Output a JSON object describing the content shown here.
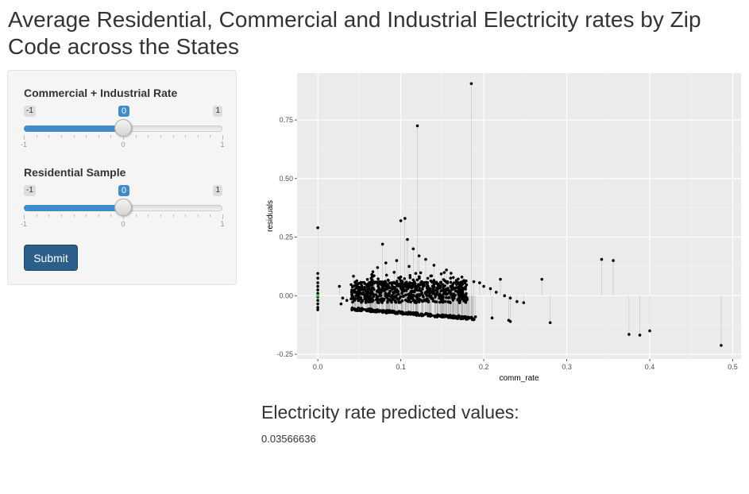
{
  "page": {
    "title": "Average Residential, Commercial and Industrial Electricity rates by Zip Code across the States"
  },
  "sidebar": {
    "slider1": {
      "label": "Commercial + Industrial Rate",
      "min_label": "-1",
      "max_label": "1",
      "value_label": "0",
      "value": 0,
      "min": -1,
      "max": 1,
      "grid_labels": [
        "-1",
        "0",
        "1"
      ]
    },
    "slider2": {
      "label": "Residential Sample",
      "min_label": "-1",
      "max_label": "1",
      "value_label": "0",
      "value": 0,
      "min": -1,
      "max": 1,
      "grid_labels": [
        "-1",
        "0",
        "1"
      ]
    },
    "submit_label": "Submit"
  },
  "output": {
    "heading": "Electricity rate predicted values:",
    "value": "0.03566636"
  },
  "colors": {
    "accent": "#428bca",
    "button": "#2b5f8a",
    "panel_bg": "#ebebeb",
    "point": "#000000",
    "highlight_point": "#33cc33"
  },
  "chart_data": {
    "type": "scatter",
    "xlabel": "comm_rate",
    "ylabel": "residuals",
    "xlim": [
      -0.025,
      0.51
    ],
    "ylim": [
      -0.27,
      0.95
    ],
    "x_ticks": [
      0,
      0.1,
      0.2,
      0.3,
      0.4,
      0.5
    ],
    "x_tick_labels": [
      "0.0",
      "0.1",
      "0.2",
      "0.3",
      "0.4",
      "0.5"
    ],
    "y_ticks": [
      -0.25,
      0,
      0.25,
      0.5,
      0.75
    ],
    "y_tick_labels": [
      "-0.25",
      "0.00",
      "0.25",
      "0.50",
      "0.75"
    ],
    "grid": true,
    "segments_to_zero": true,
    "points": [
      [
        0.0,
        0.29
      ],
      [
        0.0,
        0.095
      ],
      [
        0.0,
        0.075
      ],
      [
        0.0,
        0.055
      ],
      [
        0.0,
        0.04
      ],
      [
        0.0,
        0.025
      ],
      [
        0.0,
        0.01
      ],
      [
        0.0,
        -0.005
      ],
      [
        0.0,
        -0.02
      ],
      [
        0.0,
        -0.035
      ],
      [
        0.0,
        -0.05
      ],
      [
        0.0,
        -0.06
      ],
      [
        0.026,
        0.04
      ],
      [
        0.03,
        -0.01
      ],
      [
        0.028,
        -0.035
      ],
      [
        0.035,
        -0.02
      ],
      [
        0.185,
        0.905
      ],
      [
        0.12,
        0.725
      ],
      [
        0.105,
        0.33
      ],
      [
        0.1,
        0.32
      ],
      [
        0.108,
        0.24
      ],
      [
        0.078,
        0.22
      ],
      [
        0.115,
        0.2
      ],
      [
        0.122,
        0.17
      ],
      [
        0.13,
        0.155
      ],
      [
        0.095,
        0.15
      ],
      [
        0.082,
        0.14
      ],
      [
        0.14,
        0.13
      ],
      [
        0.11,
        0.125
      ],
      [
        0.072,
        0.12
      ],
      [
        0.155,
        0.11
      ],
      [
        0.092,
        0.1
      ],
      [
        0.118,
        0.095
      ],
      [
        0.065,
        0.09
      ],
      [
        0.137,
        0.085
      ],
      [
        0.1,
        0.08
      ],
      [
        0.16,
        0.075
      ],
      [
        0.176,
        0.065
      ],
      [
        0.188,
        0.06
      ],
      [
        0.195,
        0.055
      ],
      [
        0.22,
        0.07
      ],
      [
        0.125,
        0.06
      ],
      [
        0.085,
        0.065
      ],
      [
        0.145,
        0.05
      ],
      [
        0.2,
        0.04
      ],
      [
        0.208,
        0.03
      ],
      [
        0.215,
        0.015
      ],
      [
        0.225,
        0.0
      ],
      [
        0.232,
        -0.01
      ],
      [
        0.24,
        -0.025
      ],
      [
        0.248,
        -0.03
      ],
      [
        0.27,
        0.07
      ],
      [
        0.28,
        -0.115
      ],
      [
        0.342,
        0.155
      ],
      [
        0.356,
        0.15
      ],
      [
        0.375,
        -0.165
      ],
      [
        0.388,
        -0.168
      ],
      [
        0.4,
        -0.15
      ],
      [
        0.486,
        -0.212
      ],
      [
        0.175,
        -0.09
      ],
      [
        0.18,
        -0.1
      ],
      [
        0.183,
        -0.095
      ],
      [
        0.19,
        -0.09
      ],
      [
        0.21,
        -0.095
      ],
      [
        0.23,
        -0.105
      ],
      [
        0.232,
        -0.11
      ],
      [
        0.17,
        -0.085
      ],
      [
        0.16,
        -0.085
      ],
      [
        0.15,
        -0.082
      ],
      [
        0.13,
        -0.078
      ]
    ],
    "band_points_note_free": true,
    "highlight_points": [
      [
        0.0,
        0.0
      ]
    ]
  }
}
